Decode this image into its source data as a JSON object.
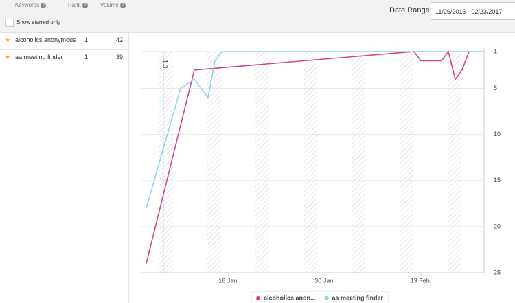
{
  "header": {
    "columns": [
      "Keywords",
      "Rank",
      "Volume"
    ],
    "starred_filter": "Show starred only",
    "date_range_label": "Date Range:",
    "date_range": "11/26/2016 - 02/23/2017"
  },
  "keywords": [
    {
      "name": "alcoholics anonymous",
      "rank": 1,
      "volume": 42
    },
    {
      "name": "aa meeting finder",
      "rank": 1,
      "volume": 39
    }
  ],
  "chart_data": {
    "type": "line",
    "xlim": [
      3.2,
      53.2
    ],
    "xticks": [
      {
        "value": 16,
        "label": "16 Jan."
      },
      {
        "value": 30,
        "label": "30 Jan."
      },
      {
        "value": 44,
        "label": "13 Feb."
      }
    ],
    "ylim": [
      25,
      1
    ],
    "yticks": [
      1,
      5,
      10,
      15,
      20,
      25
    ],
    "y_axis_side": "right",
    "grid": true,
    "annotation": {
      "x": 6.5,
      "label": "1.3"
    },
    "series": [
      {
        "name": "alcoholics anon...",
        "color": "#d2438f",
        "x": [
          4,
          11,
          43,
          44,
          47,
          48,
          49,
          50,
          51
        ],
        "values": [
          24,
          3,
          1,
          2,
          2,
          1,
          4,
          3,
          1
        ]
      },
      {
        "name": "aa meeting finder",
        "color": "#8fd6ea",
        "x": [
          4,
          9,
          11,
          13,
          14,
          15,
          53
        ],
        "values": [
          18,
          5,
          4,
          6,
          2,
          1,
          1
        ]
      }
    ]
  }
}
